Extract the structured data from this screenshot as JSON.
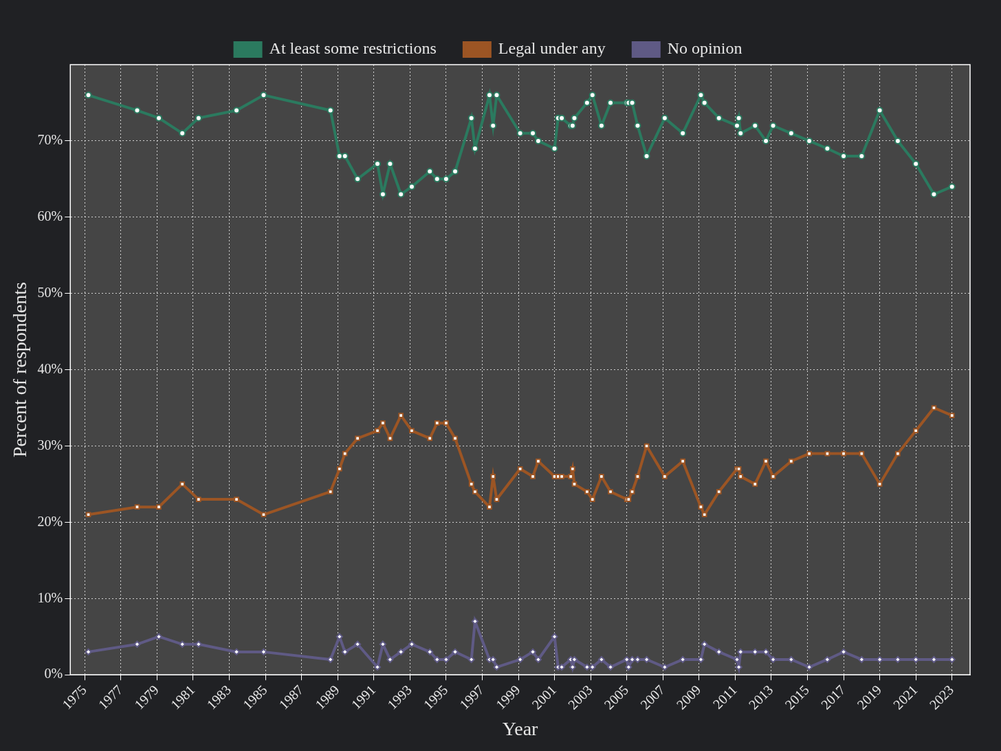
{
  "chart_data": {
    "type": "line",
    "x_label": "Year",
    "y_label": "Percent of respondents",
    "x": [
      1975.2,
      1977.9,
      1979.1,
      1980.4,
      1981.3,
      1983.4,
      1984.9,
      1988.6,
      1989.1,
      1989.4,
      1990.1,
      1991.2,
      1991.5,
      1991.9,
      1992.5,
      1993.1,
      1994.1,
      1994.5,
      1995.0,
      1995.5,
      1996.4,
      1996.6,
      1997.4,
      1997.6,
      1997.8,
      1999.1,
      1999.8,
      2000.1,
      2001.0,
      2001.2,
      2001.4,
      2001.9,
      2002.0,
      2002.1,
      2002.8,
      2003.1,
      2003.6,
      2004.1,
      2005.0,
      2005.1,
      2005.3,
      2005.6,
      2006.1,
      2007.1,
      2008.1,
      2009.1,
      2009.3,
      2010.1,
      2011.1,
      2011.2,
      2011.3,
      2012.1,
      2012.7,
      2013.1,
      2014.1,
      2015.1,
      2016.1,
      2017.0,
      2018.0,
      2019.0,
      2020.0,
      2021.0,
      2022.0,
      2023.0
    ],
    "series": [
      {
        "name": "At least some restrictions",
        "color": "#2b7a5f",
        "marker": "circle",
        "line_style": "solid",
        "values": [
          76,
          74,
          73,
          71,
          73,
          74,
          76,
          74,
          68,
          68,
          65,
          67,
          63,
          67,
          63,
          64,
          66,
          65,
          65,
          66,
          73,
          69,
          76,
          72,
          76,
          71,
          71,
          70,
          69,
          73,
          73,
          72,
          72,
          73,
          75,
          76,
          72,
          75,
          75,
          75,
          75,
          72,
          68,
          73,
          71,
          76,
          75,
          73,
          72,
          73,
          71,
          72,
          70,
          72,
          71,
          70,
          69,
          68,
          68,
          74,
          70,
          67,
          63,
          64
        ]
      },
      {
        "name": "Legal under any",
        "color": "#9c5524",
        "marker": "square",
        "line_style": "solid",
        "values": [
          21,
          22,
          22,
          25,
          23,
          23,
          21,
          24,
          27,
          29,
          31,
          32,
          33,
          31,
          34,
          32,
          31,
          33,
          33,
          31,
          25,
          24,
          22,
          26,
          23,
          27,
          26,
          28,
          26,
          26,
          26,
          26,
          27,
          25,
          24,
          23,
          26,
          24,
          23,
          23,
          24,
          26,
          30,
          26,
          28,
          22,
          21,
          24,
          27,
          27,
          26,
          25,
          28,
          26,
          28,
          29,
          29,
          29,
          29,
          25,
          29,
          32,
          35,
          34
        ]
      },
      {
        "name": "No opinion",
        "color": "#5f5a85",
        "marker": "diamond",
        "line_style": "solid",
        "values": [
          3,
          4,
          5,
          4,
          4,
          3,
          3,
          2,
          5,
          3,
          4,
          1,
          4,
          2,
          3,
          4,
          3,
          2,
          2,
          3,
          2,
          7,
          2,
          2,
          1,
          2,
          3,
          2,
          5,
          1,
          1,
          2,
          1,
          2,
          1,
          1,
          2,
          1,
          2,
          1,
          2,
          2,
          2,
          1,
          2,
          2,
          4,
          3,
          2,
          1,
          3,
          3,
          3,
          2,
          2,
          1,
          2,
          3,
          2,
          2,
          2,
          2,
          2,
          2
        ]
      }
    ],
    "xlim": [
      1974.2,
      2024.0
    ],
    "xticks": [
      1975,
      1977,
      1979,
      1981,
      1983,
      1985,
      1987,
      1989,
      1991,
      1993,
      1995,
      1997,
      1999,
      2001,
      2003,
      2005,
      2007,
      2009,
      2011,
      2013,
      2015,
      2017,
      2019,
      2021,
      2023
    ],
    "ylim": [
      0,
      80
    ],
    "yticks": [
      {
        "value": 0,
        "label": "0%"
      },
      {
        "value": 10,
        "label": "10%"
      },
      {
        "value": 20,
        "label": "20%"
      },
      {
        "value": 30,
        "label": "30%"
      },
      {
        "value": 40,
        "label": "40%"
      },
      {
        "value": 50,
        "label": "50%"
      },
      {
        "value": 60,
        "label": "60%"
      },
      {
        "value": 70,
        "label": "70%"
      }
    ],
    "grid": true,
    "legend": "top"
  }
}
